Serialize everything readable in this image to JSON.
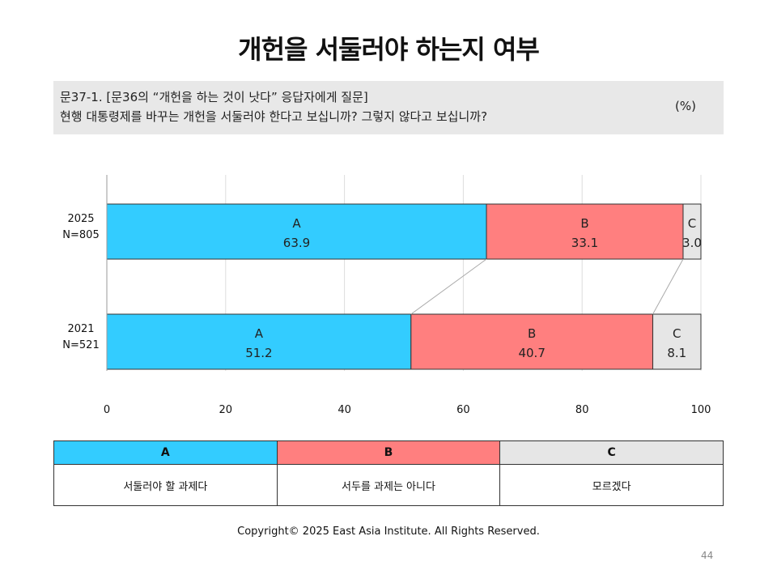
{
  "title": "개헌을 서둘러야 하는지 여부",
  "question": {
    "line1": "문37-1. [문36의 “개헌을 하는 것이 낫다” 응답자에게 질문]",
    "line2": "현행 대통령제를 바꾸는 개헌을 서둘러야 한다고 보십니까? 그렇지 않다고 보십니까?",
    "unit": "(%)"
  },
  "chart_data": {
    "type": "bar",
    "orientation": "horizontal",
    "stacked": true,
    "categories": [
      "2025\nN=805",
      "2021\nN=521"
    ],
    "series": [
      {
        "name": "A",
        "values": [
          63.9,
          51.2
        ],
        "color": "#33ccff"
      },
      {
        "name": "B",
        "values": [
          33.1,
          40.7
        ],
        "color": "#ff7f7f"
      },
      {
        "name": "C",
        "values": [
          3.0,
          8.1
        ],
        "color": "#e6e6e6"
      }
    ],
    "xlim": [
      0,
      100
    ],
    "xticks": [
      0,
      20,
      40,
      60,
      80,
      100
    ],
    "grid": true,
    "connector_lines": true
  },
  "legend": {
    "headers": [
      "A",
      "B",
      "C"
    ],
    "descriptions": [
      "서둘러야 할 과제다",
      "서두를 과제는 아니다",
      "모르겠다"
    ],
    "colors": [
      "#33ccff",
      "#ff7f7f",
      "#e6e6e6"
    ]
  },
  "footer": {
    "copyright": "Copyright© 2025 East Asia Institute. All Rights Reserved.",
    "page": "44"
  }
}
